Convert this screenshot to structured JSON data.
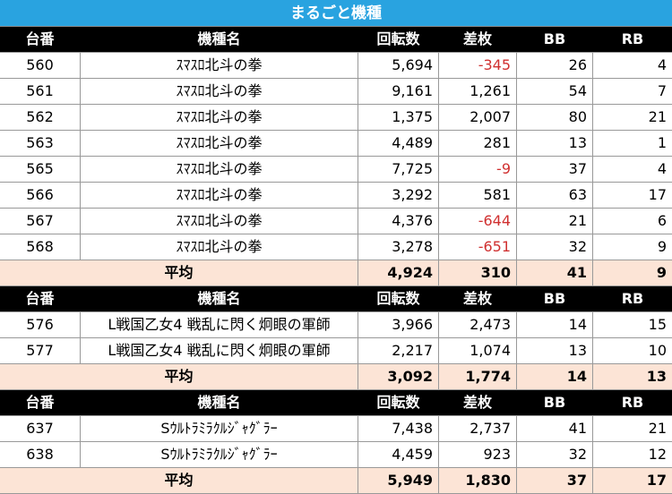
{
  "title": "まるごと機種",
  "sections": [
    {
      "header": [
        "台番",
        "機種名",
        "回転数",
        "差枚",
        "BB",
        "RB"
      ],
      "rows": [
        [
          "560",
          "ｽﾏｽﾛ北斗の拳",
          "5,694",
          "-345",
          "26",
          "4"
        ],
        [
          "561",
          "ｽﾏｽﾛ北斗の拳",
          "9,161",
          "1,261",
          "54",
          "7"
        ],
        [
          "562",
          "ｽﾏｽﾛ北斗の拳",
          "1,375",
          "2,007",
          "80",
          "21"
        ],
        [
          "563",
          "ｽﾏｽﾛ北斗の拳",
          "4,489",
          "281",
          "13",
          "1"
        ],
        [
          "565",
          "ｽﾏｽﾛ北斗の拳",
          "7,725",
          "-9",
          "37",
          "4"
        ],
        [
          "566",
          "ｽﾏｽﾛ北斗の拳",
          "3,292",
          "581",
          "63",
          "17"
        ],
        [
          "567",
          "ｽﾏｽﾛ北斗の拳",
          "4,376",
          "-644",
          "21",
          "6"
        ],
        [
          "568",
          "ｽﾏｽﾛ北斗の拳",
          "3,278",
          "-651",
          "32",
          "9"
        ]
      ],
      "average": {
        "label": "平均",
        "values": [
          "4,924",
          "310",
          "41",
          "9"
        ]
      }
    },
    {
      "header": [
        "台番",
        "機種名",
        "回転数",
        "差枚",
        "BB",
        "RB"
      ],
      "rows": [
        [
          "576",
          "L戦国乙女4 戦乱に閃く炯眼の軍師",
          "3,966",
          "2,473",
          "14",
          "15"
        ],
        [
          "577",
          "L戦国乙女4 戦乱に閃く炯眼の軍師",
          "2,217",
          "1,074",
          "13",
          "10"
        ]
      ],
      "average": {
        "label": "平均",
        "values": [
          "3,092",
          "1,774",
          "14",
          "13"
        ]
      }
    },
    {
      "header": [
        "台番",
        "機種名",
        "回転数",
        "差枚",
        "BB",
        "RB"
      ],
      "rows": [
        [
          "637",
          "Sｳﾙﾄﾗﾐﾗｸﾙｼﾞｬｸﾞﾗｰ",
          "7,438",
          "2,737",
          "41",
          "21"
        ],
        [
          "638",
          "Sｳﾙﾄﾗﾐﾗｸﾙｼﾞｬｸﾞﾗｰ",
          "4,459",
          "923",
          "32",
          "12"
        ]
      ],
      "average": {
        "label": "平均",
        "values": [
          "5,949",
          "1,830",
          "37",
          "17"
        ]
      }
    }
  ]
}
